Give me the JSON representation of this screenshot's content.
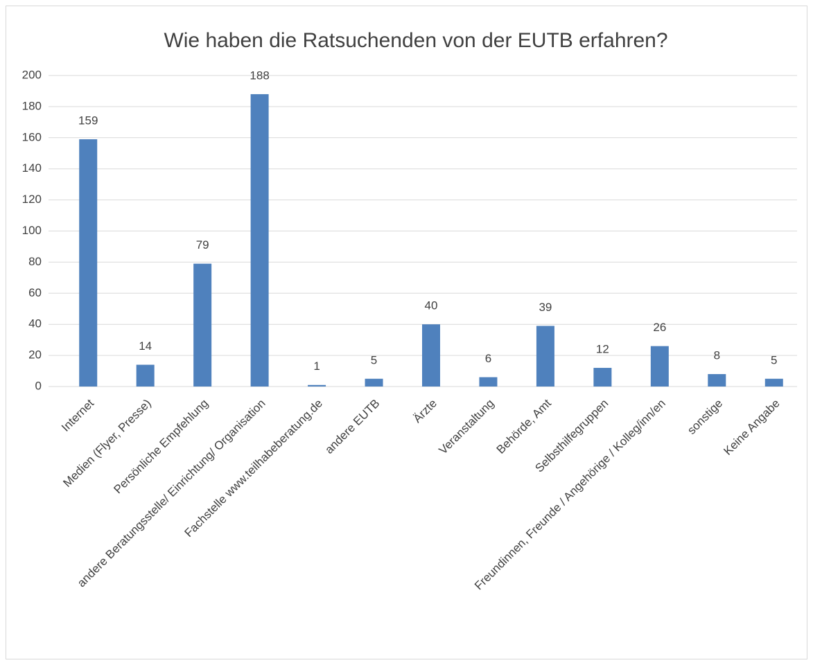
{
  "chart_data": {
    "type": "bar",
    "title": "Wie haben die Ratsuchenden von der EUTB erfahren?",
    "categories": [
      "Internet",
      "Medien (Flyer, Presse)",
      "Persönliche Empfehlung",
      "andere Beratungsstelle/ Einrichtung/ Organisation",
      "Fachstelle www.teilhabeberatung.de",
      "andere EUTB",
      "Ärzte",
      "Veranstaltung",
      "Behörde, Amt",
      "Selbsthilfegruppen",
      "Freundinnen, Freunde / Angehörige / Kolleg/inn/en",
      "sonstige",
      "Keine Angabe"
    ],
    "values": [
      159,
      14,
      79,
      188,
      1,
      5,
      40,
      6,
      39,
      12,
      26,
      8,
      5
    ],
    "color": "#4f81bd",
    "ylim": [
      0,
      200
    ],
    "yticks": [
      0,
      20,
      40,
      60,
      80,
      100,
      120,
      140,
      160,
      180,
      200
    ],
    "grid": true
  }
}
